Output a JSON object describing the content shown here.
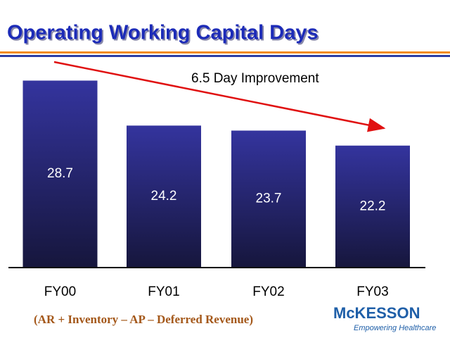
{
  "chart_data": {
    "type": "bar",
    "title": "Operating Working Capital Days",
    "categories": [
      "FY00",
      "FY01",
      "FY02",
      "FY03"
    ],
    "values": [
      28.7,
      24.2,
      23.7,
      22.2
    ],
    "color": "#33339f",
    "ylim": [
      10,
      30
    ],
    "grid": false,
    "annotation": "6.5 Day Improvement",
    "footnote": "(AR + Inventory – AP – Deferred Revenue)"
  },
  "logo": {
    "name": "McKESSON",
    "tagline": "Empowering Healthcare"
  }
}
